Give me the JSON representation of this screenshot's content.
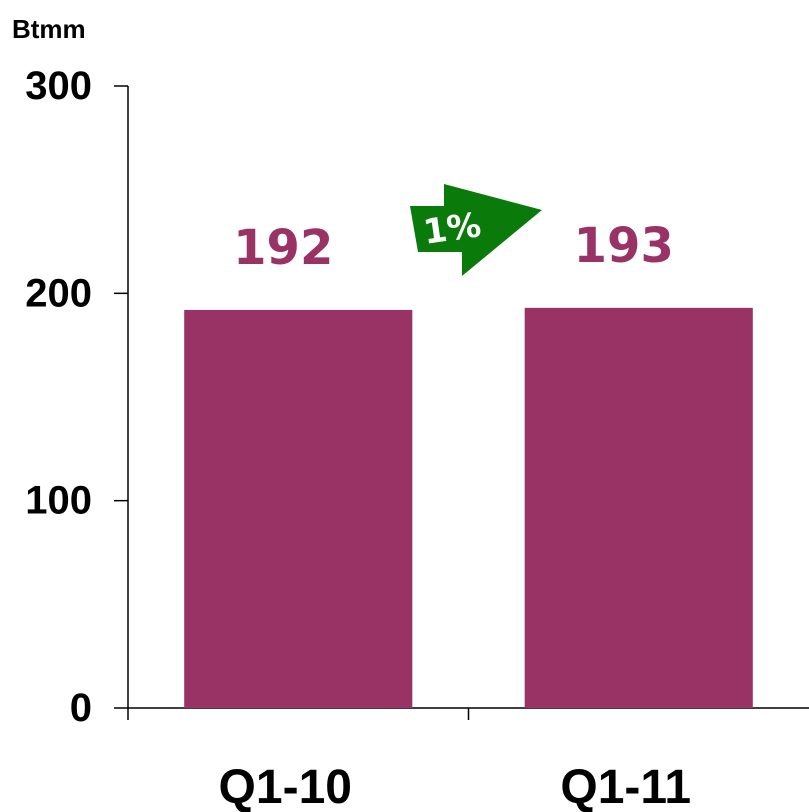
{
  "chart_data": {
    "type": "bar",
    "ylabel": "Btmm",
    "categories": [
      "Q1-10",
      "Q1-11"
    ],
    "values": [
      192,
      193
    ],
    "data_labels": [
      "192",
      "193"
    ],
    "ylim": [
      0,
      300
    ],
    "yticks": [
      0,
      100,
      200,
      300
    ],
    "ytick_labels": [
      "0",
      "100",
      "200",
      "300"
    ],
    "grid": false,
    "legend": "none",
    "annotation": {
      "text": "1%",
      "color": "#0a7a0a"
    },
    "bar_color": "#993366",
    "label_color": "#993366"
  }
}
